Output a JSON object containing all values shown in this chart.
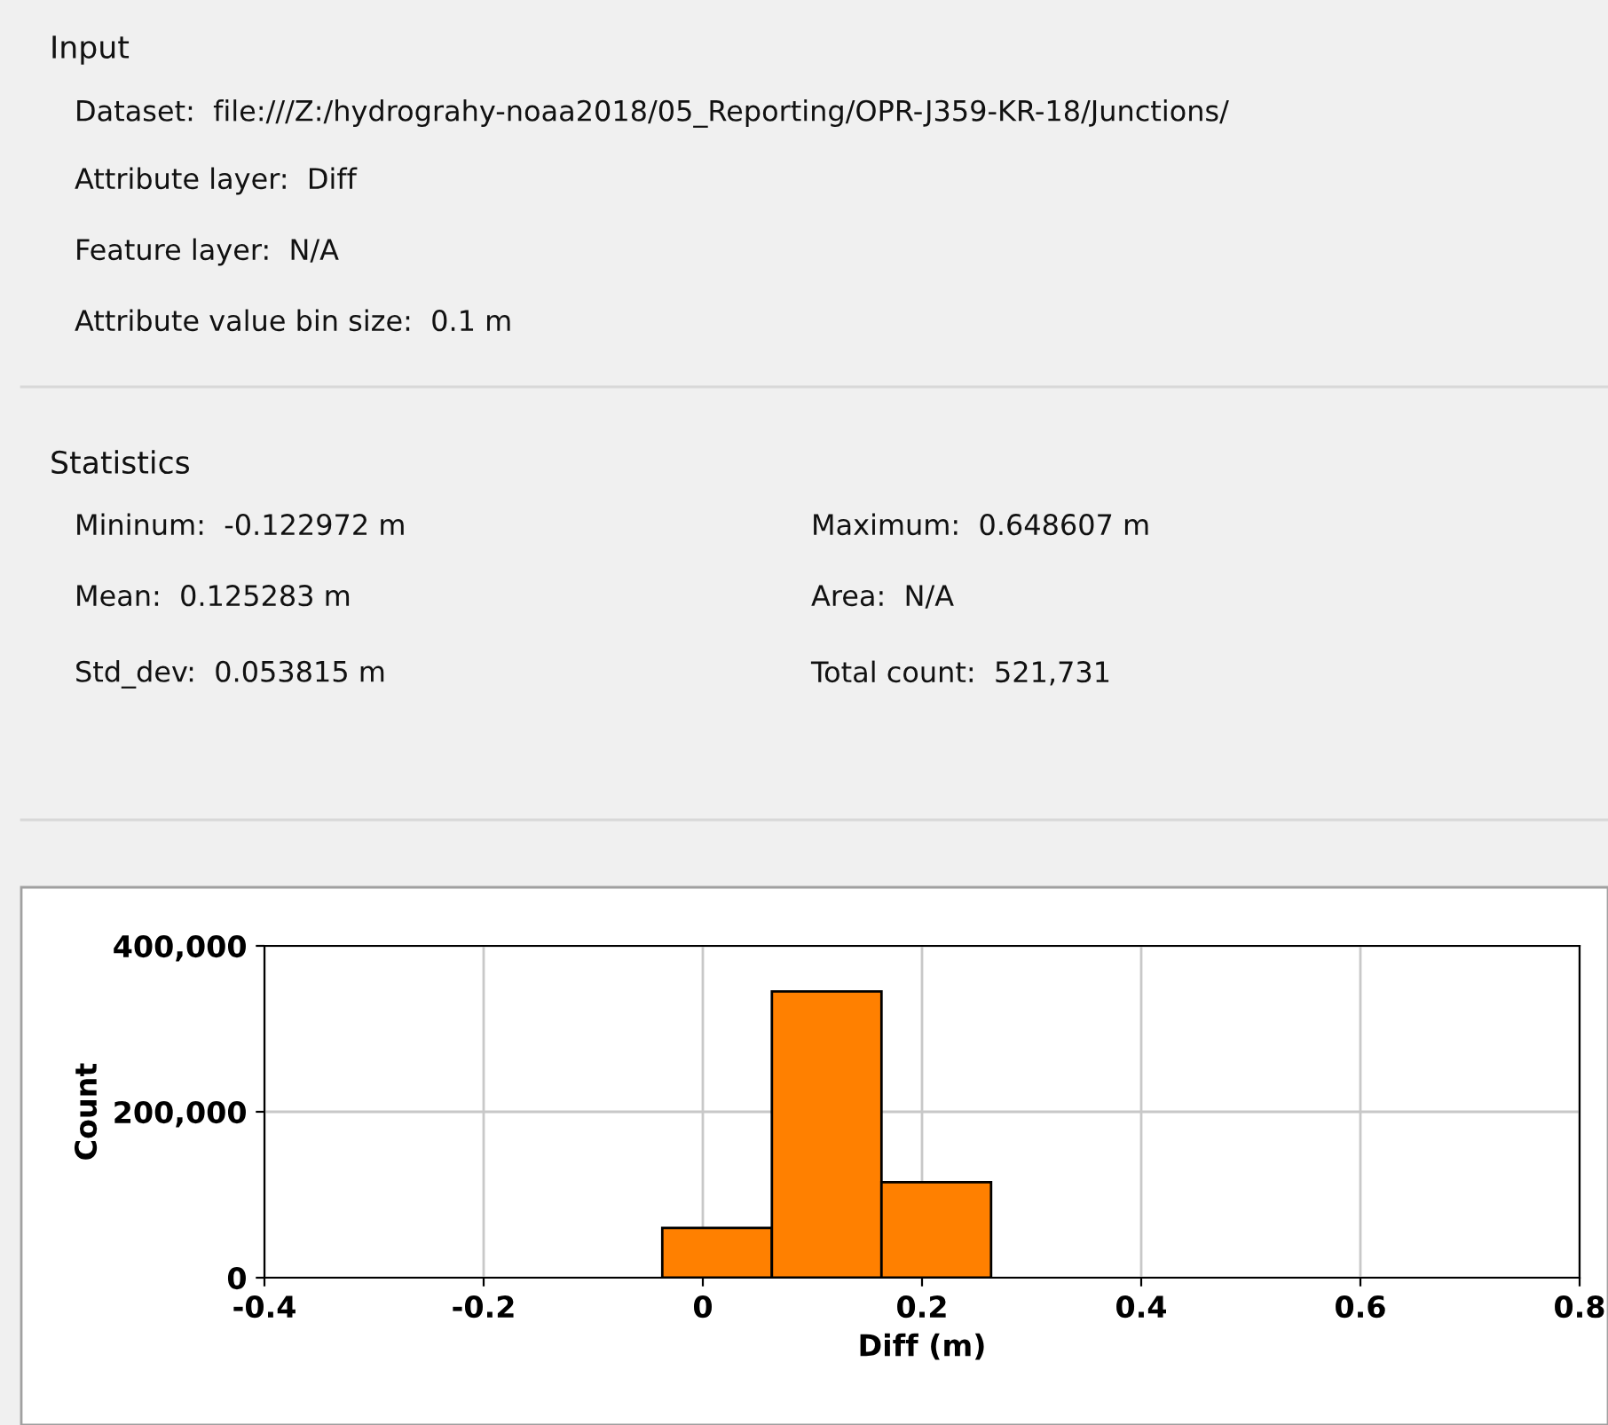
{
  "chart_data": {
    "type": "histogram",
    "xlabel": "Diff (m)",
    "ylabel": "Count",
    "bins": [
      -0.237,
      -0.137,
      -0.037,
      0.063,
      0.163,
      0.263,
      0.363,
      0.463,
      0.563,
      0.663
    ],
    "values": [
      0,
      0,
      60000,
      345000,
      115000,
      0,
      0,
      0,
      0
    ],
    "color": "#ff8000",
    "xlim": [
      -0.4,
      0.8
    ],
    "xticks": [
      -0.4,
      -0.2,
      0,
      0.2,
      0.4,
      0.6,
      0.8
    ],
    "ylim": [
      0,
      400000
    ],
    "yticks": [
      0,
      {
        "value": 200000,
        "label": "200,000"
      },
      {
        "value": 400000,
        "label": "400,000"
      }
    ],
    "grid": true,
    "annotations": [
      "Input",
      "Dataset:  file:///Z:/hydrograhy-noaa2018/05_Reporting/OPR-J359-KR-18/Junctions/",
      "Attribute layer:  Diff",
      "Feature layer:  N/A",
      "Attribute value bin size:  0.1 m",
      "Statistics",
      "Mininum:  -0.122972 m",
      "Mean:  0.125283 m",
      "Std_dev:  0.053815 m",
      "Maximum:  0.648607 m",
      "Area:  N/A",
      "Total count:  521,731"
    ]
  }
}
